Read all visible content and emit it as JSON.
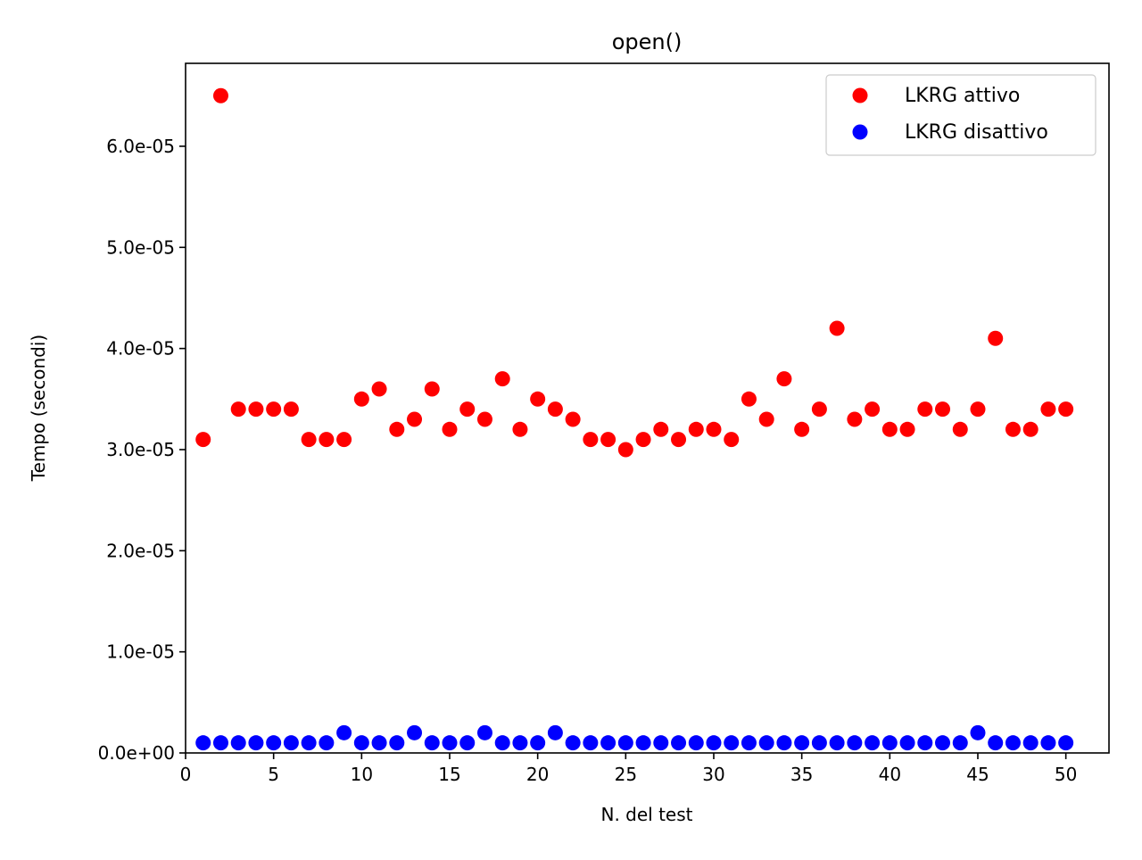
{
  "chart_data": {
    "type": "scatter",
    "title": "open()",
    "xlabel": "N. del test",
    "ylabel": "Tempo (secondi)",
    "xlim": [
      0,
      52.45
    ],
    "ylim": [
      0,
      6.82e-05
    ],
    "xticks": [
      0,
      5,
      10,
      15,
      20,
      25,
      30,
      35,
      40,
      45,
      50
    ],
    "xtick_labels": [
      "0",
      "5",
      "10",
      "15",
      "20",
      "25",
      "30",
      "35",
      "40",
      "45",
      "50"
    ],
    "yticks": [
      0,
      1e-05,
      2e-05,
      3e-05,
      4e-05,
      5e-05,
      6e-05
    ],
    "ytick_labels": [
      "0.0e+00",
      "1.0e-05",
      "2.0e-05",
      "3.0e-05",
      "4.0e-05",
      "5.0e-05",
      "6.0e-05"
    ],
    "grid": false,
    "legend_position": "top-right",
    "x": [
      1,
      2,
      3,
      4,
      5,
      6,
      7,
      8,
      9,
      10,
      11,
      12,
      13,
      14,
      15,
      16,
      17,
      18,
      19,
      20,
      21,
      22,
      23,
      24,
      25,
      26,
      27,
      28,
      29,
      30,
      31,
      32,
      33,
      34,
      35,
      36,
      37,
      38,
      39,
      40,
      41,
      42,
      43,
      44,
      45,
      46,
      47,
      48,
      49,
      50
    ],
    "series": [
      {
        "name": "LKRG attivo",
        "color": "#ff0000",
        "values": [
          3.1e-05,
          6.5e-05,
          3.4e-05,
          3.4e-05,
          3.4e-05,
          3.4e-05,
          3.1e-05,
          3.1e-05,
          3.1e-05,
          3.5e-05,
          3.6e-05,
          3.2e-05,
          3.3e-05,
          3.6e-05,
          3.2e-05,
          3.4e-05,
          3.3e-05,
          3.7e-05,
          3.2e-05,
          3.5e-05,
          3.4e-05,
          3.3e-05,
          3.1e-05,
          3.1e-05,
          3e-05,
          3.1e-05,
          3.2e-05,
          3.1e-05,
          3.2e-05,
          3.2e-05,
          3.1e-05,
          3.5e-05,
          3.3e-05,
          3.7e-05,
          3.2e-05,
          3.4e-05,
          4.2e-05,
          3.3e-05,
          3.4e-05,
          3.2e-05,
          3.2e-05,
          3.4e-05,
          3.4e-05,
          3.2e-05,
          3.4e-05,
          4.1e-05,
          3.2e-05,
          3.2e-05,
          3.4e-05,
          3.4e-05
        ]
      },
      {
        "name": "LKRG disattivo",
        "color": "#0000ff",
        "values": [
          1e-06,
          1e-06,
          1e-06,
          1e-06,
          1e-06,
          1e-06,
          1e-06,
          1e-06,
          2e-06,
          1e-06,
          1e-06,
          1e-06,
          2e-06,
          1e-06,
          1e-06,
          1e-06,
          2e-06,
          1e-06,
          1e-06,
          1e-06,
          2e-06,
          1e-06,
          1e-06,
          1e-06,
          1e-06,
          1e-06,
          1e-06,
          1e-06,
          1e-06,
          1e-06,
          1e-06,
          1e-06,
          1e-06,
          1e-06,
          1e-06,
          1e-06,
          1e-06,
          1e-06,
          1e-06,
          1e-06,
          1e-06,
          1e-06,
          1e-06,
          1e-06,
          2e-06,
          1e-06,
          1e-06,
          1e-06,
          1e-06,
          1e-06
        ]
      }
    ]
  }
}
